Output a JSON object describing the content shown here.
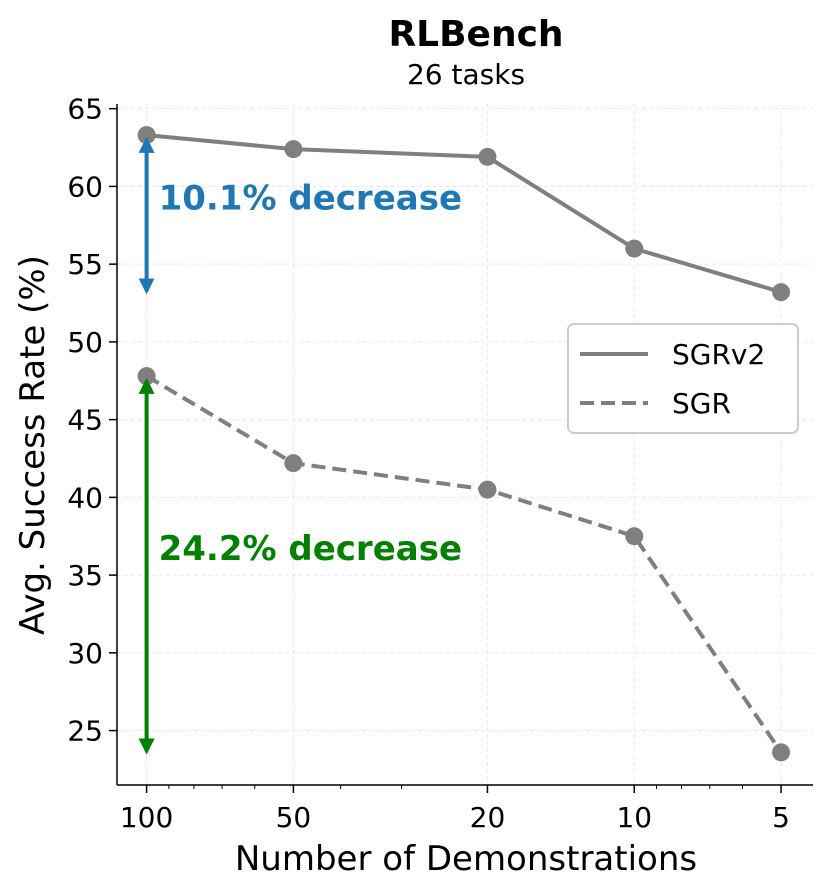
{
  "chart_data": {
    "type": "line",
    "title": "RLBench",
    "subtitle": "26 tasks",
    "xlabel": "Number of Demonstrations",
    "ylabel": "Avg. Success Rate (%)",
    "x_scale": "log",
    "x_reversed": true,
    "x": [
      100,
      50,
      20,
      10,
      5
    ],
    "x_tick_labels": [
      "100",
      "50",
      "20",
      "10",
      "5"
    ],
    "xlim": [
      115,
      4.3
    ],
    "ylim": [
      21.5,
      65.3
    ],
    "y_ticks": [
      25,
      30,
      35,
      40,
      45,
      50,
      55,
      60,
      65
    ],
    "grid": true,
    "legend_position": "center-right",
    "series": [
      {
        "name": "SGRv2",
        "style": "solid",
        "color": "#7f7f7f",
        "values": [
          63.3,
          62.4,
          61.9,
          56.0,
          53.2
        ]
      },
      {
        "name": "SGR",
        "style": "dashed",
        "color": "#7f7f7f",
        "values": [
          47.8,
          42.2,
          40.5,
          37.5,
          23.6
        ]
      }
    ],
    "annotations": [
      {
        "text": "10.1% decrease",
        "color": "#1f77b4",
        "x": 100,
        "y_from": 63.3,
        "y_to": 53.2
      },
      {
        "text": "24.2% decrease",
        "color": "#008000",
        "x": 100,
        "y_from": 47.8,
        "y_to": 23.6
      }
    ]
  }
}
